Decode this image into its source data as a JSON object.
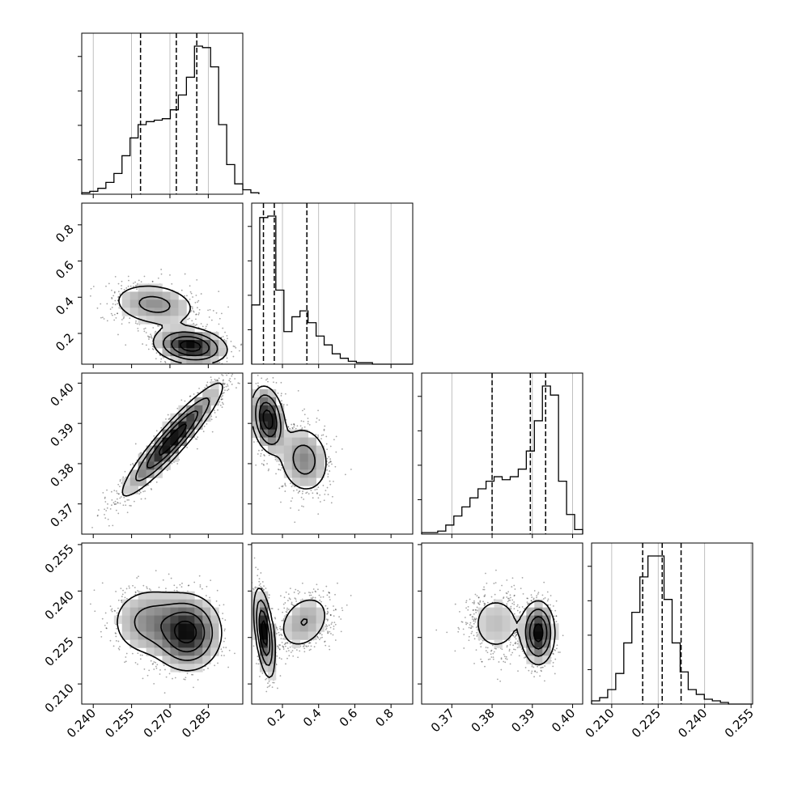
{
  "chart_data": {
    "type": "corner",
    "title": "",
    "parameters": [
      {
        "label": "",
        "range": [
          0.2355,
          0.2985
        ],
        "ticks": [
          0.24,
          0.255,
          0.27,
          0.285
        ],
        "tick_labels": [
          "0.240",
          "0.255",
          "0.270",
          "0.285"
        ],
        "quantiles": [
          0.2585,
          0.2725,
          0.2805
        ]
      },
      {
        "label": "",
        "range": [
          0.03,
          0.92
        ],
        "ticks": [
          0.2,
          0.4,
          0.6,
          0.8
        ],
        "tick_labels": [
          "0.2",
          "0.4",
          "0.6",
          "0.8"
        ],
        "quantiles": [
          0.095,
          0.155,
          0.335
        ]
      },
      {
        "label": "",
        "range": [
          0.3625,
          0.4025
        ],
        "ticks": [
          0.37,
          0.38,
          0.39,
          0.4
        ],
        "tick_labels": [
          "0.37",
          "0.38",
          "0.39",
          "0.40"
        ],
        "quantiles": [
          0.38,
          0.3895,
          0.3933
        ]
      },
      {
        "label": "",
        "range": [
          0.2035,
          0.2555
        ],
        "ticks": [
          0.21,
          0.225,
          0.24,
          0.255
        ],
        "tick_labels": [
          "0.210",
          "0.225",
          "0.240",
          "0.255"
        ],
        "quantiles": [
          0.22,
          0.2263,
          0.2324
        ]
      }
    ],
    "histograms": [
      {
        "param": 0,
        "bin_start": 0.2355,
        "bin_width": 0.00315,
        "counts": [
          1,
          2,
          4,
          8,
          14,
          26,
          38,
          47,
          49,
          50,
          51,
          57,
          67,
          79,
          100,
          99,
          86,
          47,
          20,
          7,
          3,
          1
        ]
      },
      {
        "param": 1,
        "bin_start": 0.03,
        "bin_width": 0.0445,
        "counts": [
          40,
          99,
          100,
          50,
          22,
          32,
          36,
          28,
          19,
          13,
          7,
          4,
          2,
          1,
          1,
          0,
          0,
          0,
          0,
          0
        ]
      },
      {
        "param": 2,
        "bin_start": 0.3625,
        "bin_width": 0.002,
        "counts": [
          1,
          1,
          2,
          6,
          12,
          18,
          24,
          30,
          35,
          38,
          36,
          38,
          43,
          55,
          75,
          98,
          92,
          35,
          13,
          3
        ]
      },
      {
        "param": 3,
        "bin_start": 0.2035,
        "bin_width": 0.0026,
        "counts": [
          2,
          4,
          9,
          19,
          38,
          57,
          79,
          92,
          92,
          65,
          38,
          20,
          9,
          6,
          3,
          2,
          1,
          0,
          0,
          0
        ]
      }
    ],
    "grid": true,
    "legend": "none"
  }
}
